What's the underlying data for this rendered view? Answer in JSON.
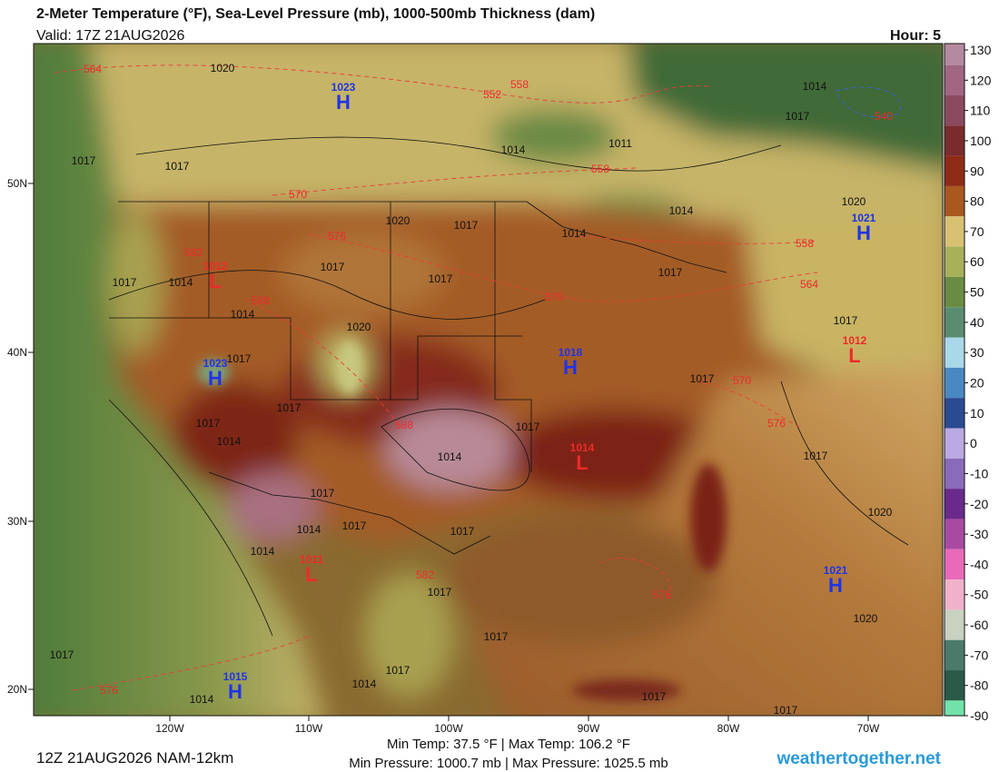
{
  "header": {
    "title": "2-Meter Temperature (°F), Sea-Level Pressure (mb), 1000-500mb Thickness (dam)",
    "valid": "Valid: 17Z 21AUG2026",
    "hour": "Hour: 5"
  },
  "map": {
    "lat_labels": [
      "50N",
      "40N",
      "30N",
      "20N"
    ],
    "lon_labels": [
      "120W",
      "110W",
      "100W",
      "90W",
      "80W",
      "70W"
    ],
    "highs": [
      {
        "symbol": "H",
        "pressure": "1023"
      },
      {
        "symbol": "H",
        "pressure": "1023"
      },
      {
        "symbol": "H",
        "pressure": "1018"
      },
      {
        "symbol": "H",
        "pressure": "1021"
      },
      {
        "symbol": "H",
        "pressure": "1021"
      },
      {
        "symbol": "H",
        "pressure": "1015"
      }
    ],
    "lows": [
      {
        "symbol": "L",
        "pressure": "1012"
      },
      {
        "symbol": "L",
        "pressure": "1014"
      },
      {
        "symbol": "L",
        "pressure": "1012"
      },
      {
        "symbol": "L",
        "pressure": "1011"
      }
    ],
    "isobar_labels": [
      "1020",
      "1017",
      "1017",
      "1014",
      "1011",
      "1017",
      "1014",
      "1020",
      "1017",
      "1014",
      "1014",
      "1020",
      "1017",
      "1017",
      "1017",
      "1014",
      "1014",
      "1020",
      "1017",
      "1017",
      "1017",
      "1017",
      "1014",
      "1014",
      "1017",
      "1017",
      "1017",
      "1017",
      "1017",
      "1014",
      "1014",
      "1017",
      "1017",
      "1020",
      "1020",
      "1017",
      "1017",
      "1014",
      "1014",
      "1017",
      "1017",
      "1017",
      "1017"
    ],
    "thickness_labels": [
      "564",
      "552",
      "558",
      "540",
      "558",
      "570",
      "576",
      "582",
      "558",
      "564",
      "570",
      "588",
      "588",
      "570",
      "576",
      "582",
      "576",
      "576"
    ]
  },
  "colorbar": {
    "ticks": [
      130,
      120,
      110,
      100,
      90,
      80,
      70,
      60,
      50,
      40,
      30,
      20,
      10,
      0,
      -10,
      -20,
      -30,
      -40,
      -50,
      -60,
      -70,
      -80,
      -90
    ],
    "colors": [
      "#b58aa0",
      "#a06682",
      "#8c4a60",
      "#7a2c2c",
      "#8e2c18",
      "#a9581e",
      "#d9c173",
      "#a9b05a",
      "#6a8c42",
      "#5a8c72",
      "#a9d9e9",
      "#4a88c2",
      "#2a4a92",
      "#baa9e2",
      "#8a6aba",
      "#6a2a8c",
      "#a84aa2",
      "#e86ab9",
      "#f0b2ca",
      "#c9d1c1",
      "#4a7a6a",
      "#2a5a48",
      "#72e2aa"
    ]
  },
  "footer": {
    "run": "12Z 21AUG2026 NAM-12km",
    "temps": "Min Temp:  37.5 °F | Max Temp: 106.2 °F",
    "pressures": "Min Pressure: 1000.7 mb | Max Pressure: 1025.5 mb",
    "site": "weathertogether.net"
  }
}
